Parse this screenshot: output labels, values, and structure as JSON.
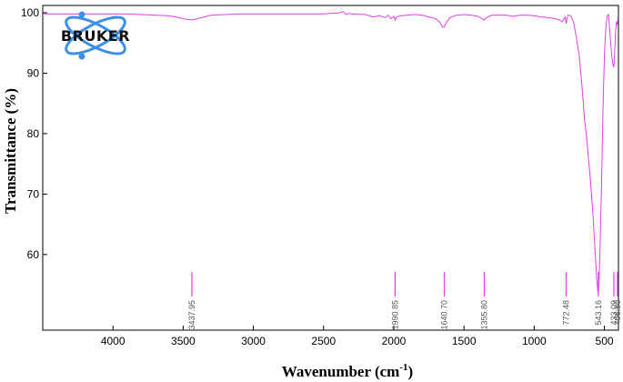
{
  "logo": {
    "text": "BRUKER",
    "color": "#3b8fe8"
  },
  "chart_data": {
    "type": "line",
    "title": "",
    "xlabel": "Wavenumber (cm⁻¹)",
    "xlabel_main": "Wavenumber (cm",
    "xlabel_sup": "-1",
    "xlabel_close": ")",
    "ylabel": "Transmittance (%)",
    "x_reversed": true,
    "xlim": [
      4500,
      400
    ],
    "ylim": [
      52,
      100
    ],
    "x_ticks": [
      4000,
      3500,
      3000,
      2500,
      2000,
      1500,
      1000,
      500
    ],
    "x_tick_labels": [
      "4000",
      "3500",
      "3000",
      "2500",
      "2000",
      "1500",
      "1000",
      "500"
    ],
    "y_ticks": [
      100,
      90,
      80,
      70,
      60
    ],
    "y_tick_labels": [
      "100",
      "90",
      "80",
      "70",
      "60"
    ],
    "grid": false,
    "line_color": "#e040e8",
    "series": [
      {
        "points": [
          [
            4500,
            99.8
          ],
          [
            4400,
            99.8
          ],
          [
            4300,
            99.8
          ],
          [
            4200,
            99.8
          ],
          [
            4100,
            99.8
          ],
          [
            4000,
            99.8
          ],
          [
            3900,
            99.8
          ],
          [
            3800,
            99.7
          ],
          [
            3700,
            99.6
          ],
          [
            3600,
            99.5
          ],
          [
            3550,
            99.3
          ],
          [
            3500,
            99.0
          ],
          [
            3440,
            98.8
          ],
          [
            3400,
            99.0
          ],
          [
            3350,
            99.3
          ],
          [
            3300,
            99.6
          ],
          [
            3200,
            99.7
          ],
          [
            3100,
            99.8
          ],
          [
            3000,
            99.8
          ],
          [
            2900,
            99.8
          ],
          [
            2800,
            99.8
          ],
          [
            2700,
            99.8
          ],
          [
            2600,
            99.8
          ],
          [
            2500,
            99.8
          ],
          [
            2450,
            99.9
          ],
          [
            2400,
            99.9
          ],
          [
            2360,
            100.2
          ],
          [
            2340,
            99.7
          ],
          [
            2320,
            99.9
          ],
          [
            2300,
            99.8
          ],
          [
            2200,
            99.7
          ],
          [
            2150,
            99.3
          ],
          [
            2100,
            99.5
          ],
          [
            2060,
            99.2
          ],
          [
            2040,
            99.6
          ],
          [
            2020,
            99.0
          ],
          [
            2000,
            99.4
          ],
          [
            1990,
            98.8
          ],
          [
            1980,
            99.3
          ],
          [
            1950,
            99.5
          ],
          [
            1900,
            99.6
          ],
          [
            1850,
            99.7
          ],
          [
            1800,
            99.6
          ],
          [
            1750,
            99.3
          ],
          [
            1700,
            99.0
          ],
          [
            1670,
            98.4
          ],
          [
            1655,
            97.7
          ],
          [
            1641,
            97.6
          ],
          [
            1625,
            98.4
          ],
          [
            1600,
            99.2
          ],
          [
            1550,
            99.6
          ],
          [
            1500,
            99.7
          ],
          [
            1450,
            99.6
          ],
          [
            1400,
            99.4
          ],
          [
            1370,
            99.0
          ],
          [
            1356,
            98.8
          ],
          [
            1340,
            99.2
          ],
          [
            1300,
            99.6
          ],
          [
            1250,
            99.6
          ],
          [
            1200,
            99.6
          ],
          [
            1150,
            99.4
          ],
          [
            1100,
            99.6
          ],
          [
            1050,
            99.6
          ],
          [
            1000,
            99.5
          ],
          [
            950,
            99.3
          ],
          [
            900,
            99.2
          ],
          [
            850,
            99.0
          ],
          [
            820,
            98.8
          ],
          [
            800,
            98.5
          ],
          [
            790,
            98.9
          ],
          [
            780,
            99.3
          ],
          [
            772,
            98.2
          ],
          [
            765,
            99.2
          ],
          [
            760,
            99.6
          ],
          [
            740,
            99.5
          ],
          [
            720,
            98.5
          ],
          [
            700,
            96.0
          ],
          [
            680,
            93.0
          ],
          [
            660,
            88.0
          ],
          [
            640,
            82.0
          ],
          [
            625,
            79.0
          ],
          [
            610,
            75.0
          ],
          [
            595,
            71.0
          ],
          [
            580,
            66.0
          ],
          [
            565,
            60.0
          ],
          [
            555,
            56.0
          ],
          [
            548,
            54.0
          ],
          [
            543,
            53.8
          ],
          [
            538,
            55.5
          ],
          [
            530,
            62.0
          ],
          [
            520,
            72.0
          ],
          [
            510,
            84.0
          ],
          [
            500,
            93.0
          ],
          [
            490,
            97.5
          ],
          [
            480,
            99.5
          ],
          [
            470,
            99.7
          ],
          [
            462,
            97.0
          ],
          [
            455,
            95.0
          ],
          [
            448,
            93.0
          ],
          [
            440,
            91.5
          ],
          [
            433,
            91.0
          ],
          [
            428,
            93.0
          ],
          [
            420,
            97.0
          ],
          [
            414,
            98.5
          ],
          [
            409,
            98.0
          ],
          [
            404,
            99.0
          ],
          [
            400,
            98.8
          ]
        ]
      }
    ],
    "peaks": [
      {
        "x": 3437.95,
        "label": "3437.95"
      },
      {
        "x": 1990.85,
        "label": "1990.85"
      },
      {
        "x": 1640.7,
        "label": "1640.70"
      },
      {
        "x": 1355.8,
        "label": "1355.80"
      },
      {
        "x": 772.48,
        "label": "772.48"
      },
      {
        "x": 543.16,
        "label": "543.16"
      },
      {
        "x": 433.09,
        "label": "433.09"
      },
      {
        "x": 406.8,
        "label": "406.80"
      }
    ]
  }
}
